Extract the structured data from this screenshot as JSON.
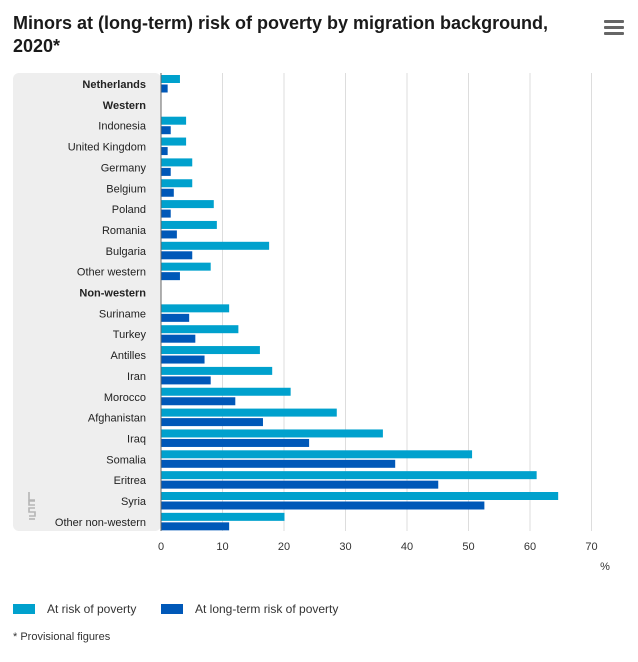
{
  "page": {
    "title": "Minors at (long-term) risk of poverty by migration background, 2020*",
    "footnote": "* Provisional figures",
    "menu_icon": "hamburger-menu-icon",
    "watermark_icon": "cbs-logo-icon"
  },
  "colors": {
    "at_risk": "#00a1cd",
    "long_term": "#0058b8",
    "panel": "#eeeeee",
    "grid": "#dddddd"
  },
  "chart_data": {
    "type": "bar",
    "orientation": "horizontal",
    "categories": [
      "Netherlands",
      "Western",
      "Indonesia",
      "United Kingdom",
      "Germany",
      "Belgium",
      "Poland",
      "Romania",
      "Bulgaria",
      "Other western",
      "Non-western",
      "Suriname",
      "Turkey",
      "Antilles",
      "Iran",
      "Morocco",
      "Afghanistan",
      "Iraq",
      "Somalia",
      "Eritrea",
      "Syria",
      "Other non-western"
    ],
    "bold_categories": [
      "Netherlands",
      "Western",
      "Non-western"
    ],
    "series": [
      {
        "name": "At risk of poverty",
        "color": "#00a1cd",
        "values": [
          3,
          null,
          4,
          4,
          5,
          5,
          8.5,
          9,
          17.5,
          8,
          null,
          11,
          12.5,
          16,
          18,
          21,
          28.5,
          36,
          50.5,
          61,
          64.5,
          20
        ]
      },
      {
        "name": "At long-term risk of poverty",
        "color": "#0058b8",
        "values": [
          1,
          null,
          1.5,
          1,
          1.5,
          2,
          1.5,
          2.5,
          5,
          3,
          null,
          4.5,
          5.5,
          7,
          8,
          12,
          16.5,
          24,
          38,
          45,
          52.5,
          11
        ]
      }
    ],
    "xlim": [
      0,
      70
    ],
    "xticks": [
      0,
      10,
      20,
      30,
      40,
      50,
      60,
      70
    ],
    "xunit": "%",
    "legend_position": "bottom-left",
    "grid": true
  }
}
